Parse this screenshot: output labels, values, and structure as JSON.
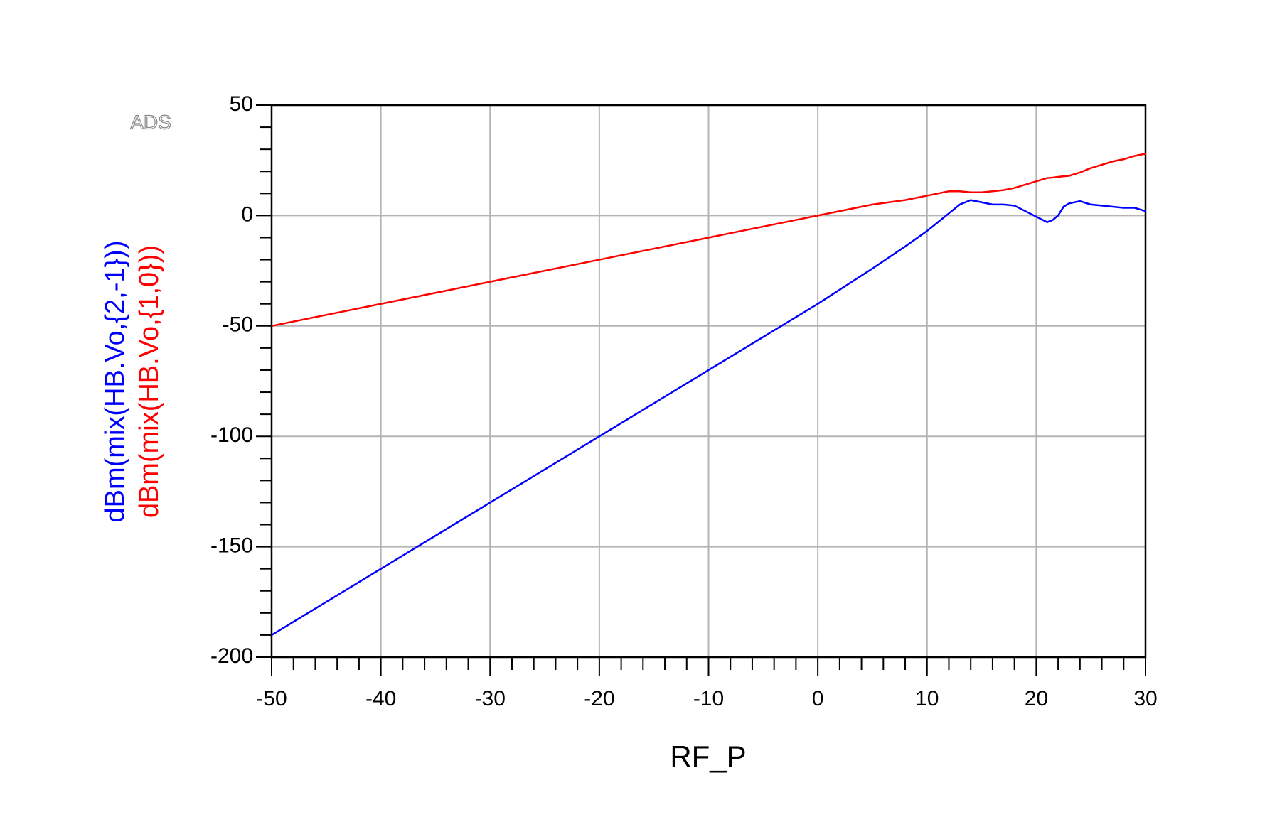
{
  "chart_data": {
    "type": "line",
    "watermark": "ADS",
    "xlabel": "RF_P",
    "x": [
      -50,
      -40,
      -30,
      -20,
      -10,
      -5,
      0,
      5,
      8,
      10,
      11,
      12,
      13,
      14,
      15,
      16,
      17,
      18,
      19,
      20,
      21,
      21.5,
      22,
      22.5,
      23,
      24,
      25,
      26,
      27,
      28,
      29,
      30
    ],
    "series": [
      {
        "name": "dBm(mix(HB.Vo,{2,-1}))",
        "color": "#0000ff",
        "values": [
          -190,
          -160,
          -130,
          -100,
          -70,
          -55,
          -40,
          -24,
          -14,
          -7,
          -3,
          1,
          5,
          7,
          6,
          5,
          5,
          4.5,
          2,
          -0.5,
          -3,
          -2,
          0,
          4,
          5.5,
          6.5,
          5,
          4.5,
          4,
          3.5,
          3.5,
          2
        ]
      },
      {
        "name": "dBm(mix(HB.Vo,{1,0}))",
        "color": "#ff0000",
        "values": [
          -50,
          -40,
          -30,
          -20,
          -10,
          -5,
          0,
          5,
          7,
          9,
          10,
          11,
          11,
          10.5,
          10.5,
          11,
          11.5,
          12.5,
          14,
          15.5,
          17,
          17.2,
          17.5,
          17.8,
          18,
          19.5,
          21.5,
          23,
          24.5,
          25.5,
          27,
          28
        ]
      }
    ],
    "xlim": [
      -50,
      30
    ],
    "xticks": [
      -50,
      -40,
      -30,
      -20,
      -10,
      0,
      10,
      20,
      30
    ],
    "xminor_ticks": [
      -48,
      -46,
      -44,
      -42,
      -38,
      -36,
      -34,
      -32,
      -28,
      -26,
      -24,
      -22,
      -18,
      -16,
      -14,
      -12,
      -8,
      -6,
      -4,
      -2,
      2,
      4,
      6,
      8,
      12,
      14,
      16,
      18,
      22,
      24,
      26,
      28
    ],
    "ylim": [
      -200,
      50
    ],
    "yticks": [
      -200,
      -150,
      -100,
      -50,
      0,
      50
    ],
    "yminor_ticks": [
      -190,
      -180,
      -170,
      -160,
      -140,
      -130,
      -120,
      -110,
      -90,
      -80,
      -70,
      -60,
      -40,
      -30,
      -20,
      -10,
      10,
      20,
      30,
      40
    ],
    "grid": true
  }
}
